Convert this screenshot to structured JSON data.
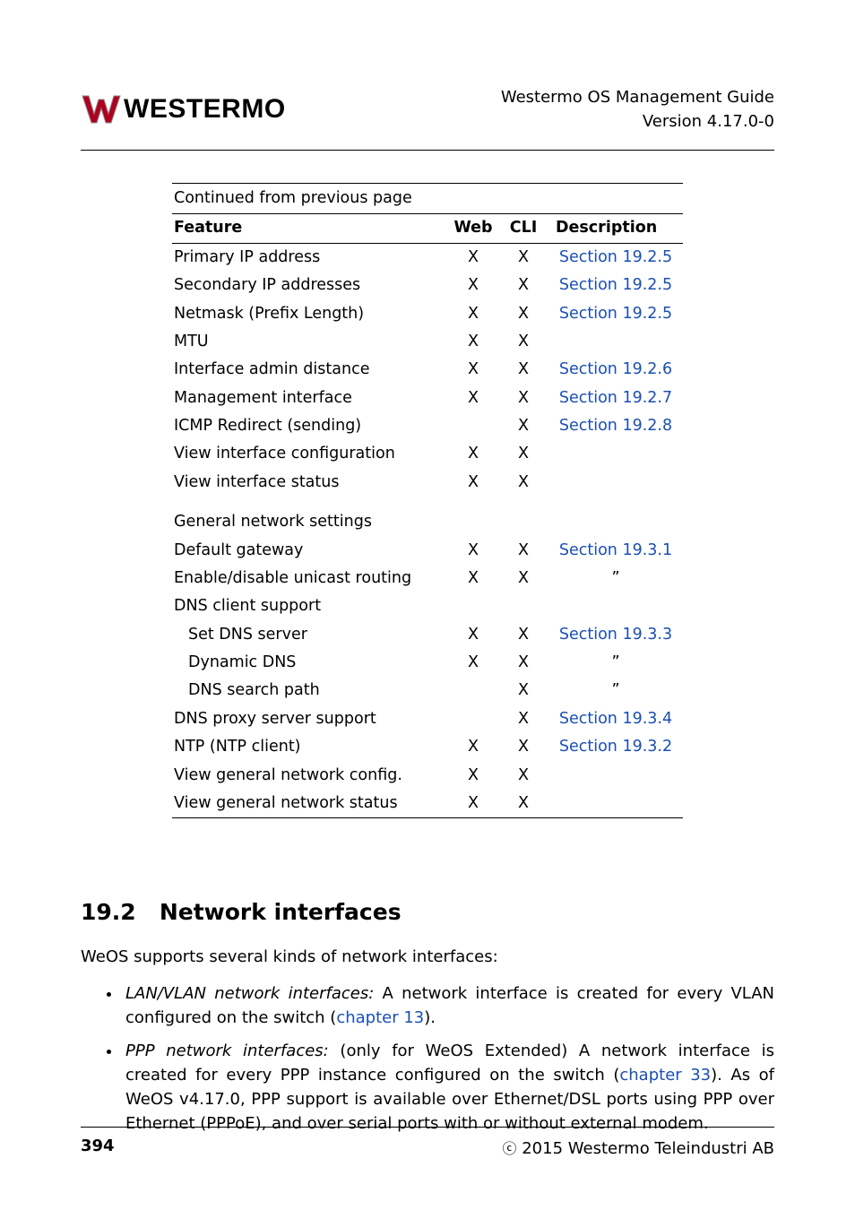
{
  "header": {
    "logo_text": "Westermo",
    "title_line1": "Westermo OS Management Guide",
    "title_line2": "Version 4.17.0-0"
  },
  "table": {
    "caption": "Continued from previous page",
    "columns": {
      "feature": "Feature",
      "web": "Web",
      "cli": "CLI",
      "desc": "Description"
    },
    "rows": [
      {
        "feature": "Primary IP address",
        "web": "X",
        "cli": "X",
        "desc": "Section 19.2.5",
        "link": true
      },
      {
        "feature": "Secondary IP addresses",
        "web": "X",
        "cli": "X",
        "desc": "Section 19.2.5",
        "link": true
      },
      {
        "feature": "Netmask (Prefix Length)",
        "web": "X",
        "cli": "X",
        "desc": "Section 19.2.5",
        "link": true
      },
      {
        "feature": "MTU",
        "web": "X",
        "cli": "X",
        "desc": ""
      },
      {
        "feature": "Interface admin distance",
        "web": "X",
        "cli": "X",
        "desc": "Section 19.2.6",
        "link": true
      },
      {
        "feature": "Management interface",
        "web": "X",
        "cli": "X",
        "desc": "Section 19.2.7",
        "link": true
      },
      {
        "feature": "ICMP Redirect (sending)",
        "web": "",
        "cli": "X",
        "desc": "Section 19.2.8",
        "link": true
      },
      {
        "feature": "View interface configuration",
        "web": "X",
        "cli": "X",
        "desc": ""
      },
      {
        "feature": "View interface status",
        "web": "X",
        "cli": "X",
        "desc": ""
      }
    ],
    "section2_title": "General network settings",
    "rows2": [
      {
        "feature": "Default gateway",
        "web": "X",
        "cli": "X",
        "desc": "Section 19.3.1",
        "link": true
      },
      {
        "feature": "Enable/disable unicast routing",
        "web": "X",
        "cli": "X",
        "desc": "”",
        "ditto": true
      },
      {
        "feature": "DNS client support",
        "web": "",
        "cli": "",
        "desc": ""
      },
      {
        "feature": "Set DNS server",
        "indent": true,
        "web": "X",
        "cli": "X",
        "desc": "Section 19.3.3",
        "link": true
      },
      {
        "feature": "Dynamic DNS",
        "indent": true,
        "web": "X",
        "cli": "X",
        "desc": "”",
        "ditto": true
      },
      {
        "feature": "DNS search path",
        "indent": true,
        "web": "",
        "cli": "X",
        "desc": "”",
        "ditto": true
      },
      {
        "feature": "DNS proxy server support",
        "web": "",
        "cli": "X",
        "desc": "Section 19.3.4",
        "link": true
      },
      {
        "feature": "NTP (NTP client)",
        "web": "X",
        "cli": "X",
        "desc": "Section 19.3.2",
        "link": true
      },
      {
        "feature": "View general network config.",
        "web": "X",
        "cli": "X",
        "desc": ""
      },
      {
        "feature": "View general network status",
        "web": "X",
        "cli": "X",
        "desc": ""
      }
    ]
  },
  "section": {
    "number": "19.2",
    "title": "Network interfaces",
    "intro": "WeOS supports several kinds of network interfaces:",
    "bullets": [
      {
        "lead": "LAN/VLAN network interfaces:",
        "text_before": " A network interface is created for every VLAN configured on the switch (",
        "link": "chapter 13",
        "text_after": ")."
      },
      {
        "lead": "PPP network interfaces:",
        "text_before": " (only for WeOS Extended) A network interface is created for every PPP instance configured on the switch (",
        "link": "chapter 33",
        "text_after": "). As of WeOS v4.17.0, PPP support is available over Ethernet/DSL ports using PPP over Ethernet (PPPoE), and over serial ports with or without external modem."
      }
    ]
  },
  "footer": {
    "page": "394",
    "copyright": "2015 Westermo Teleindustri AB"
  },
  "colors": {
    "link": "#1a4fb3",
    "logo_red": "#b00020",
    "logo_grey": "#8a8a8a"
  }
}
